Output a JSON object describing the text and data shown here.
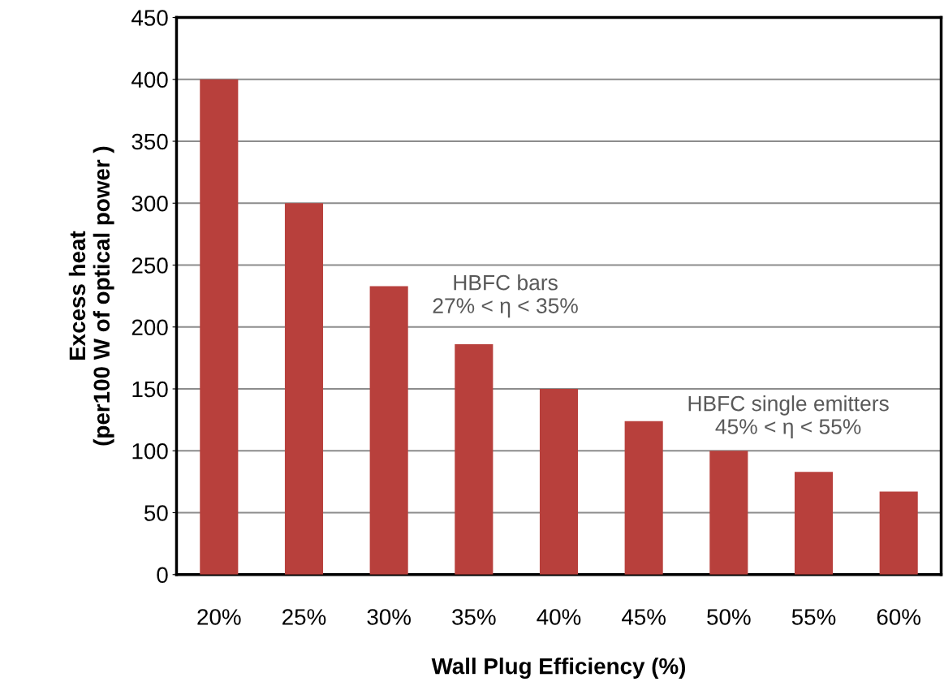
{
  "chart_data": {
    "type": "bar",
    "xlabel": "Wall Plug Efficiency (%)",
    "ylabel": "Excess heat\n(per100 W of optical power )",
    "categories": [
      "20%",
      "25%",
      "30%",
      "35%",
      "40%",
      "45%",
      "50%",
      "55%",
      "60%"
    ],
    "values": [
      400,
      300,
      233,
      186,
      150,
      124,
      100,
      83,
      67
    ],
    "color": "#b8403c",
    "ylim": [
      0,
      450
    ],
    "yticks": [
      0,
      50,
      100,
      150,
      200,
      250,
      300,
      350,
      400,
      450
    ],
    "grid": "y",
    "legend": false,
    "annotations": [
      "HBFC bars\n27% < η < 35%",
      "HBFC single emitters\n45% < η < 55%"
    ]
  }
}
